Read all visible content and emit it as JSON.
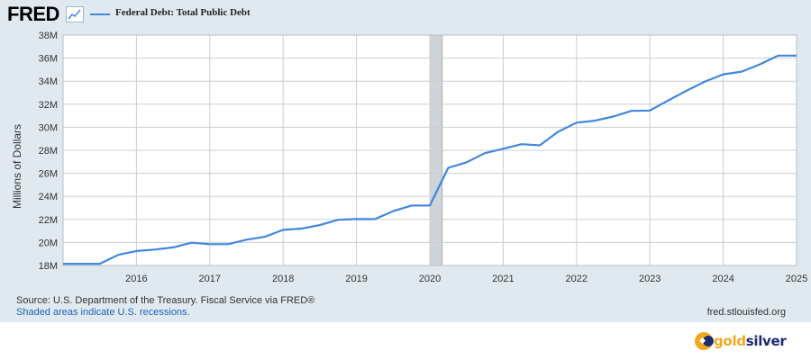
{
  "header": {
    "logo_text": "FRED",
    "logo_icon": "trend-line-icon",
    "legend_label": "Federal Debt: Total Public Debt",
    "legend_color": "#4286de"
  },
  "chart_data": {
    "type": "line",
    "title": "",
    "ylabel": "Millions of Dollars",
    "xlabel": "",
    "ylim": [
      18,
      38
    ],
    "y_unit": "M",
    "xlim": [
      2015.0,
      2025.0
    ],
    "y_ticks": [
      "18M",
      "20M",
      "22M",
      "24M",
      "26M",
      "28M",
      "30M",
      "32M",
      "34M",
      "36M",
      "38M"
    ],
    "y_tick_values": [
      18,
      20,
      22,
      24,
      26,
      28,
      30,
      32,
      34,
      36,
      38
    ],
    "x_ticks": [
      "2016",
      "2017",
      "2018",
      "2019",
      "2020",
      "2021",
      "2022",
      "2023",
      "2024",
      "2025"
    ],
    "x_tick_values": [
      2016,
      2017,
      2018,
      2019,
      2020,
      2021,
      2022,
      2023,
      2024,
      2025
    ],
    "grid": true,
    "line_color": "#4286de",
    "recession": {
      "start": 2020.0,
      "end": 2020.17,
      "color": "#cfd4d8"
    },
    "series": [
      {
        "x": [
          2015.0,
          2015.25,
          2015.5,
          2015.75,
          2016.0,
          2016.25,
          2016.5,
          2016.75,
          2017.0,
          2017.25,
          2017.5,
          2017.75,
          2018.0,
          2018.25,
          2018.5,
          2018.75,
          2019.0,
          2019.25,
          2019.5,
          2019.75,
          2020.0,
          2020.25,
          2020.5,
          2020.75,
          2021.0,
          2021.25,
          2021.5,
          2021.75,
          2022.0,
          2022.25,
          2022.5,
          2022.75,
          2023.0,
          2023.25,
          2023.5,
          2023.75,
          2024.0,
          2024.25,
          2024.5,
          2024.75,
          2025.0
        ],
        "values": [
          18.15,
          18.15,
          18.15,
          18.92,
          19.26,
          19.38,
          19.57,
          19.98,
          19.85,
          19.85,
          20.24,
          20.49,
          21.09,
          21.2,
          21.51,
          21.97,
          22.03,
          22.02,
          22.72,
          23.2,
          23.2,
          26.48,
          26.95,
          27.75,
          28.13,
          28.53,
          28.43,
          29.62,
          30.4,
          30.57,
          30.93,
          31.42,
          31.45,
          32.33,
          33.17,
          33.97,
          34.59,
          34.83,
          35.46,
          36.22,
          36.22
        ]
      }
    ]
  },
  "footer": {
    "source": "Source: U.S. Department of the Treasury. Fiscal Service via FRED®",
    "recession_note": "Shaded areas indicate U.S. recessions.",
    "url": "fred.stlouisfed.org"
  },
  "branding": {
    "gold_part": "gold",
    "silver_part": "silver",
    "icon": "goldsilver-logo-icon",
    "gold_color": "#f0a81e",
    "silver_color": "#1c2b6e"
  }
}
